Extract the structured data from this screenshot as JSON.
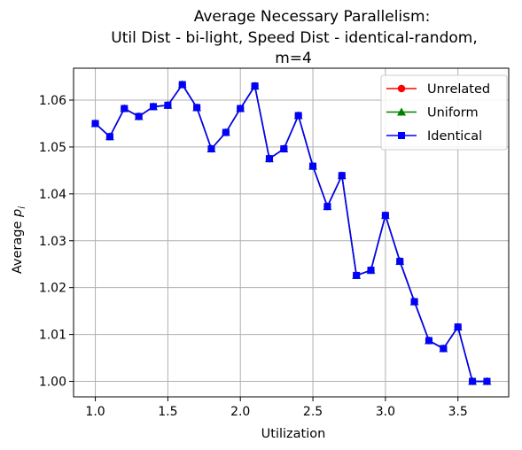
{
  "chart_data": {
    "type": "line",
    "title_lines": [
      "Average Necessary Parallelism:",
      "Util Dist - bi-light, Speed Dist - identical-random,",
      "m=4"
    ],
    "xlabel": "Utilization",
    "ylabel_main": "Average ",
    "ylabel_var": "p",
    "ylabel_sub": "i",
    "xlim": [
      0.85,
      3.85
    ],
    "ylim": [
      0.9967,
      1.0668
    ],
    "x_ticks": [
      1.0,
      1.5,
      2.0,
      2.5,
      3.0,
      3.5
    ],
    "x_tick_labels": [
      "1.0",
      "1.5",
      "2.0",
      "2.5",
      "3.0",
      "3.5"
    ],
    "y_ticks": [
      1.0,
      1.01,
      1.02,
      1.03,
      1.04,
      1.05,
      1.06
    ],
    "y_tick_labels": [
      "1.00",
      "1.01",
      "1.02",
      "1.03",
      "1.04",
      "1.05",
      "1.06"
    ],
    "grid": true,
    "legend_position": "top-right",
    "x": [
      1.0,
      1.1,
      1.2,
      1.3,
      1.4,
      1.5,
      1.6,
      1.7,
      1.8,
      1.9,
      2.0,
      2.1,
      2.2,
      2.3,
      2.4,
      2.5,
      2.6,
      2.7,
      2.8,
      2.9,
      3.0,
      3.1,
      3.2,
      3.3,
      3.4,
      3.5,
      3.6,
      3.7
    ],
    "series": [
      {
        "name": "Unrelated",
        "color": "#ff0000",
        "marker": "circle",
        "values": [
          1.055,
          1.0522,
          1.0582,
          1.0565,
          1.0586,
          1.0589,
          1.0633,
          1.0584,
          1.0496,
          1.0531,
          1.0582,
          1.063,
          1.0475,
          1.0496,
          1.0567,
          1.0459,
          1.0373,
          1.0439,
          1.0226,
          1.0237,
          1.0354,
          1.0256,
          1.017,
          1.0087,
          1.007,
          1.0116,
          1.0,
          1.0
        ]
      },
      {
        "name": "Uniform",
        "color": "#008000",
        "marker": "triangle",
        "values": [
          1.055,
          1.0522,
          1.0582,
          1.0565,
          1.0586,
          1.0589,
          1.0633,
          1.0584,
          1.0496,
          1.0531,
          1.0582,
          1.063,
          1.0475,
          1.0496,
          1.0567,
          1.0459,
          1.0373,
          1.0439,
          1.0226,
          1.0237,
          1.0354,
          1.0256,
          1.017,
          1.0087,
          1.007,
          1.0116,
          1.0,
          1.0
        ]
      },
      {
        "name": "Identical",
        "color": "#0000ff",
        "marker": "square",
        "values": [
          1.055,
          1.0522,
          1.0582,
          1.0565,
          1.0586,
          1.0589,
          1.0633,
          1.0584,
          1.0496,
          1.0531,
          1.0582,
          1.063,
          1.0475,
          1.0496,
          1.0567,
          1.0459,
          1.0373,
          1.0439,
          1.0226,
          1.0237,
          1.0354,
          1.0256,
          1.017,
          1.0087,
          1.007,
          1.0116,
          1.0,
          1.0
        ]
      }
    ]
  }
}
